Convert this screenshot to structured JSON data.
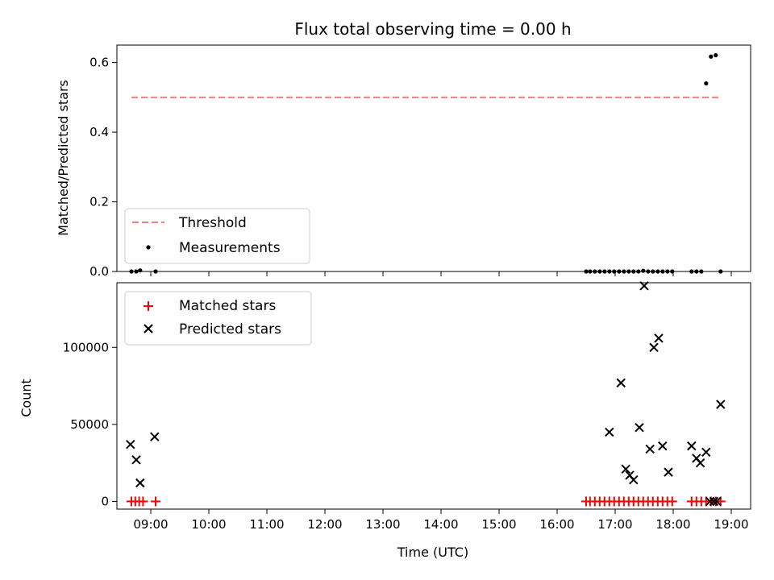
{
  "chart_data": [
    {
      "type": "scatter",
      "title": "Flux total observing time = 0.00 h",
      "xlabel": "",
      "ylabel": "Matched/Predicted stars",
      "xlim": [
        "08:25",
        "19:20"
      ],
      "ylim": [
        0,
        0.65
      ],
      "yticks": [
        0,
        0.2,
        0.4,
        0.6
      ],
      "ytick_labels": [
        "0.0",
        "0.2",
        "0.4",
        "0.6"
      ],
      "xticks": [
        "09:00",
        "10:00",
        "11:00",
        "12:00",
        "13:00",
        "14:00",
        "15:00",
        "16:00",
        "17:00",
        "18:00",
        "19:00"
      ],
      "xtick_labels_visible": false,
      "legend_position": "lower-left",
      "threshold": {
        "name": "Threshold",
        "value": 0.5,
        "x_range": [
          "08:40",
          "18:50"
        ],
        "color": "#f08080",
        "style": "dashed"
      },
      "series": [
        {
          "name": "Measurements",
          "marker": "dot",
          "color": "#000000",
          "x": [
            "08:40",
            "08:45",
            "08:49",
            "09:05",
            "16:30",
            "16:34",
            "16:39",
            "16:44",
            "16:49",
            "16:54",
            "16:59",
            "17:04",
            "17:09",
            "17:14",
            "17:19",
            "17:24",
            "17:29",
            "17:34",
            "17:39",
            "17:44",
            "17:49",
            "17:54",
            "17:59",
            "18:19",
            "18:24",
            "18:29",
            "18:34",
            "18:39",
            "18:44",
            "18:49"
          ],
          "y": [
            0.0,
            0.0,
            0.003,
            0.0,
            0.0,
            0.0,
            0.0,
            0.0,
            0.0,
            0.0,
            0.0,
            0.0,
            0.0,
            0.0,
            0.0,
            0.0,
            0.002,
            0.0,
            0.0,
            0.0,
            0.0,
            0.0,
            0.0,
            0.0,
            0.0,
            0.0,
            0.54,
            0.617,
            0.621,
            0.0
          ]
        }
      ]
    },
    {
      "type": "scatter",
      "title": "",
      "xlabel": "Time (UTC)",
      "ylabel": "Count",
      "xlim": [
        "08:25",
        "19:20"
      ],
      "ylim": [
        -5000,
        142000
      ],
      "yticks": [
        0,
        50000,
        100000
      ],
      "ytick_labels": [
        "0",
        "50000",
        "100000"
      ],
      "xticks": [
        "09:00",
        "10:00",
        "11:00",
        "12:00",
        "13:00",
        "14:00",
        "15:00",
        "16:00",
        "17:00",
        "18:00",
        "19:00"
      ],
      "xtick_labels": [
        "09:00",
        "10:00",
        "11:00",
        "12:00",
        "13:00",
        "14:00",
        "15:00",
        "16:00",
        "17:00",
        "18:00",
        "19:00"
      ],
      "legend_position": "upper-left",
      "series": [
        {
          "name": "Matched stars",
          "marker": "plus",
          "color": "#ff0000",
          "x": [
            "08:40",
            "08:44",
            "08:48",
            "08:52",
            "09:05",
            "16:30",
            "16:34",
            "16:39",
            "16:44",
            "16:49",
            "16:54",
            "16:59",
            "17:04",
            "17:09",
            "17:14",
            "17:19",
            "17:24",
            "17:29",
            "17:34",
            "17:39",
            "17:44",
            "17:49",
            "17:54",
            "17:59",
            "18:19",
            "18:24",
            "18:29",
            "18:34",
            "18:39",
            "18:44",
            "18:49"
          ],
          "y": [
            0,
            0,
            0,
            0,
            0,
            0,
            0,
            0,
            0,
            0,
            0,
            0,
            0,
            0,
            0,
            0,
            0,
            0,
            0,
            0,
            0,
            0,
            0,
            0,
            0,
            0,
            0,
            0,
            0,
            0,
            0
          ]
        },
        {
          "name": "Predicted stars",
          "marker": "x",
          "color": "#000000",
          "x": [
            "08:39",
            "08:45",
            "08:49",
            "09:04",
            "16:54",
            "17:06",
            "17:11",
            "17:15",
            "17:19",
            "17:25",
            "17:30",
            "17:36",
            "17:40",
            "17:45",
            "17:49",
            "17:55",
            "18:19",
            "18:24",
            "18:28",
            "18:34",
            "18:38",
            "18:42",
            "18:45",
            "18:49"
          ],
          "y": [
            37000,
            27000,
            12000,
            42000,
            45000,
            77000,
            21000,
            17000,
            14000,
            48000,
            140000,
            34000,
            100000,
            106000,
            36000,
            19000,
            36000,
            28000,
            25000,
            32000,
            0,
            0,
            0,
            63000
          ]
        }
      ]
    }
  ]
}
